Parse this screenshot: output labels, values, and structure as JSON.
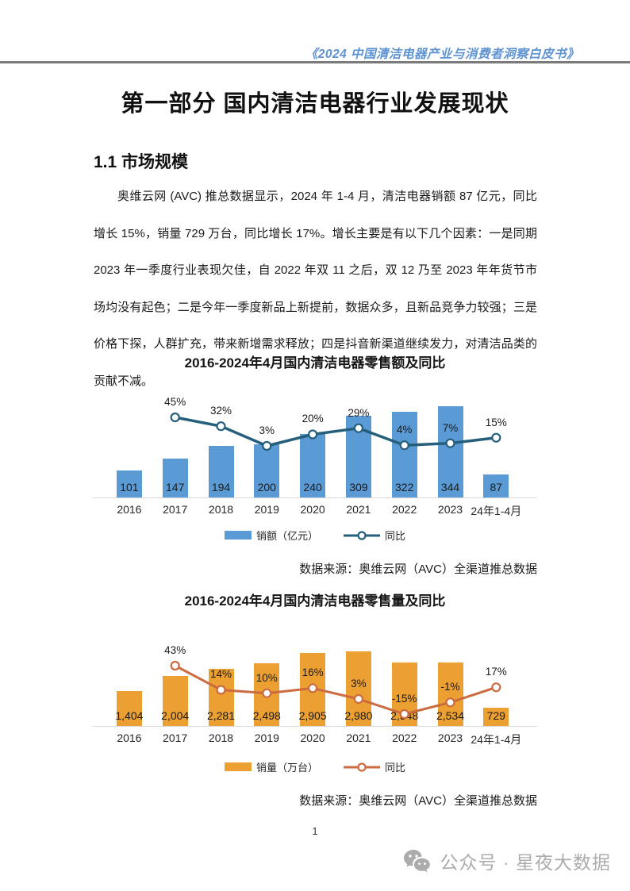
{
  "header": {
    "doc_title": "《2024 中国清洁电器产业与消费者洞察白皮书》"
  },
  "page": {
    "title": "第一部分 国内清洁电器行业发展现状",
    "section_heading": "1.1 市场规模",
    "paragraph": "奥维云网 (AVC) 推总数据显示，2024 年 1-4 月，清洁电器销额 87 亿元，同比增长 15%，销量 729 万台，同比增长 17%。增长主要是有以下几个因素：一是同期 2023 年一季度行业表现欠佳，自 2022 年双 11 之后，双 12 乃至 2023 年年货节市场均没有起色；二是今年一季度新品上新提前，数据众多，且新品竞争力较强；三是价格下探，人群扩充，带来新增需求释放；四是抖音新渠道继续发力，对清洁品类的贡献不减。",
    "page_number": "1"
  },
  "chart_data": [
    {
      "type": "bar+line",
      "title": "2016-2024年4月国内清洁电器零售额及同比",
      "categories": [
        "2016",
        "2017",
        "2018",
        "2019",
        "2020",
        "2021",
        "2022",
        "2023",
        "24年1-4月"
      ],
      "series": [
        {
          "name": "销额（亿元）",
          "type": "bar",
          "color": "#5B9BD5",
          "values": [
            101,
            147,
            194,
            200,
            240,
            309,
            322,
            344,
            87
          ],
          "labels": [
            "101",
            "147",
            "194",
            "200",
            "240",
            "309",
            "322",
            "344",
            "87"
          ]
        },
        {
          "name": "同比",
          "type": "line",
          "color": "#265F7C",
          "values": [
            null,
            45,
            32,
            3,
            20,
            29,
            4,
            7,
            15
          ],
          "labels": [
            null,
            "45%",
            "32%",
            "3%",
            "20%",
            "29%",
            "4%",
            "7%",
            "15%"
          ]
        }
      ],
      "legend_position": "bottom",
      "grid": false,
      "source": "数据来源：奥维云网（AVC）全渠道推总数据"
    },
    {
      "type": "bar+line",
      "title": "2016-2024年4月国内清洁电器零售量及同比",
      "categories": [
        "2016",
        "2017",
        "2018",
        "2019",
        "2020",
        "2021",
        "2022",
        "2023",
        "24年1-4月"
      ],
      "series": [
        {
          "name": "销量（万台）",
          "type": "bar",
          "color": "#EDA032",
          "values": [
            1404,
            2004,
            2281,
            2498,
            2905,
            2980,
            2548,
            2534,
            729
          ],
          "labels": [
            "1,404",
            "2,004",
            "2,281",
            "2,498",
            "2,905",
            "2,980",
            "2,548",
            "2,534",
            "729"
          ]
        },
        {
          "name": "同比",
          "type": "line",
          "color": "#CB6B3F",
          "values": [
            null,
            43,
            14,
            10,
            16,
            3,
            -15,
            -1,
            17
          ],
          "labels": [
            null,
            "43%",
            "14%",
            "10%",
            "16%",
            "3%",
            "-15%",
            "-1%",
            "17%"
          ]
        }
      ],
      "legend_position": "bottom",
      "grid": false,
      "source": "数据来源：奥维云网（AVC）全渠道推总数据"
    }
  ],
  "footer": {
    "wechat_label": "公众号 · 星夜大数据"
  }
}
